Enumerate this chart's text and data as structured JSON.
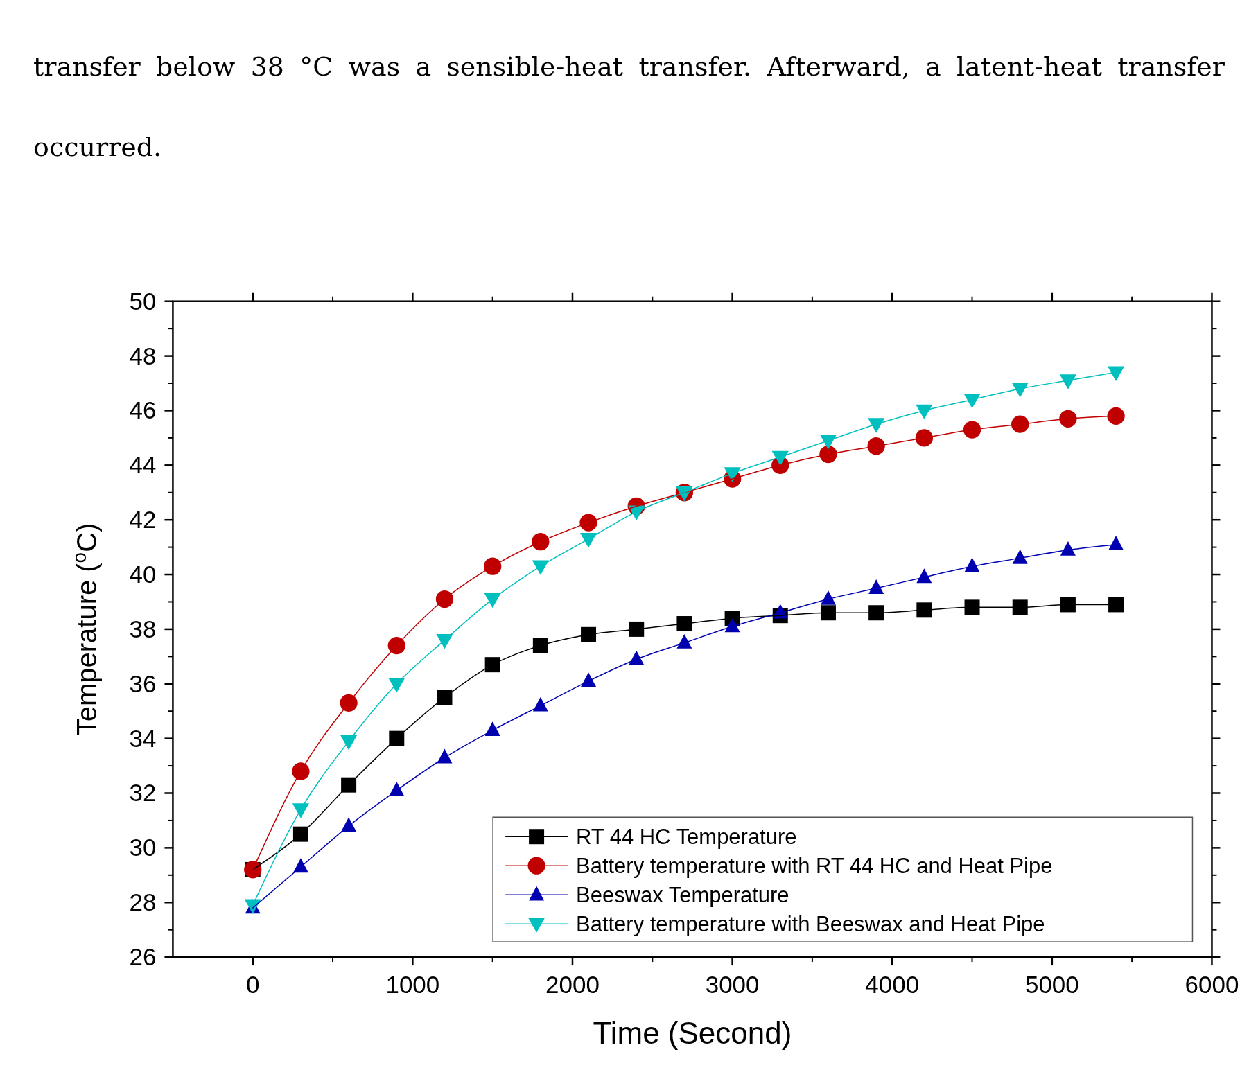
{
  "chart_data": {
    "type": "line",
    "xlabel": "Time (Second)",
    "ylabel": "Temperature ($^{o}$C)",
    "annotations": [
      "transfer below 38 °C was a sensible-heat transfer. Afterward, a latent-heat transfer occurred."
    ],
    "x": [
      0,
      300,
      600,
      900,
      1200,
      1500,
      1800,
      2100,
      2400,
      2700,
      3000,
      3300,
      3600,
      3900,
      4200,
      4500,
      4800,
      5100,
      5400
    ],
    "series": [
      {
        "name": "RT 44 HC Temperature",
        "color": "#000000",
        "marker": "square",
        "values": [
          29.2,
          30.5,
          32.3,
          34.0,
          35.5,
          36.7,
          37.4,
          37.8,
          38.0,
          38.2,
          38.4,
          38.5,
          38.6,
          38.6,
          38.7,
          38.8,
          38.8,
          38.9,
          38.9
        ]
      },
      {
        "name": "Battery temperature with RT 44 HC and Heat Pipe",
        "color": "#c00000",
        "marker": "circle",
        "values": [
          29.2,
          32.8,
          35.3,
          37.4,
          39.1,
          40.3,
          41.2,
          41.9,
          42.5,
          43.0,
          43.5,
          44.0,
          44.4,
          44.7,
          45.0,
          45.3,
          45.5,
          45.7,
          45.8
        ]
      },
      {
        "name": "Beeswax Temperature",
        "color": "#0000b0",
        "marker": "triangle",
        "values": [
          27.8,
          29.3,
          30.8,
          32.1,
          33.3,
          34.3,
          35.2,
          36.1,
          36.9,
          37.5,
          38.1,
          38.6,
          39.1,
          39.5,
          39.9,
          40.3,
          40.6,
          40.9,
          41.1
        ]
      },
      {
        "name": "Battery temperature with Beeswax and Heat Pipe",
        "color": "#00bfbf",
        "marker": "triangle-down",
        "values": [
          27.9,
          31.4,
          33.9,
          36.0,
          37.6,
          39.1,
          40.3,
          41.3,
          42.3,
          43.0,
          43.7,
          44.3,
          44.9,
          45.5,
          46.0,
          46.4,
          46.8,
          47.1,
          47.4
        ]
      }
    ],
    "xlim": [
      -500,
      6000
    ],
    "xticks": [
      0,
      1000,
      2000,
      3000,
      4000,
      5000,
      6000
    ],
    "ylim": [
      26,
      50
    ],
    "yticks": [
      26,
      28,
      30,
      32,
      34,
      36,
      38,
      40,
      42,
      44,
      46,
      48,
      50
    ],
    "legend": "bottom right",
    "grid": false,
    "line_style": "solid"
  }
}
